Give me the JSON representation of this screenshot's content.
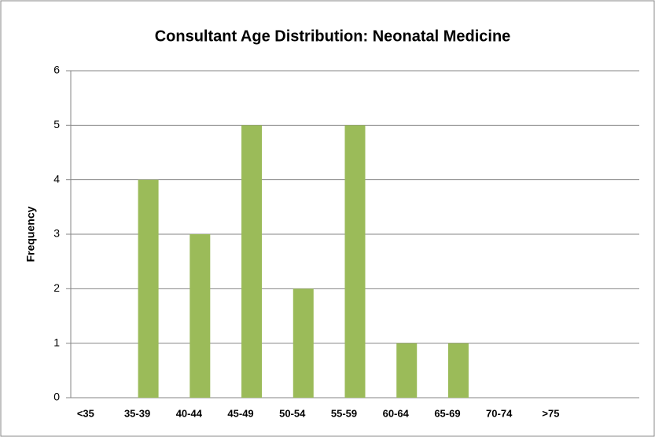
{
  "chart_data": {
    "type": "bar",
    "title": "Consultant Age Distribution: Neonatal Medicine",
    "y_label": "Frequency",
    "categories": [
      "<35",
      "35-39",
      "40-44",
      "45-49",
      "50-54",
      "55-59",
      "60-64",
      "65-69",
      "70-74",
      ">75",
      null
    ],
    "values": [
      0,
      4,
      3,
      5,
      2,
      5,
      1,
      1,
      0,
      0,
      0
    ],
    "color": "#9bbb59",
    "ylim": [
      0,
      6
    ],
    "yticks": [
      0,
      1,
      2,
      3,
      4,
      5,
      6
    ],
    "grid": true
  }
}
